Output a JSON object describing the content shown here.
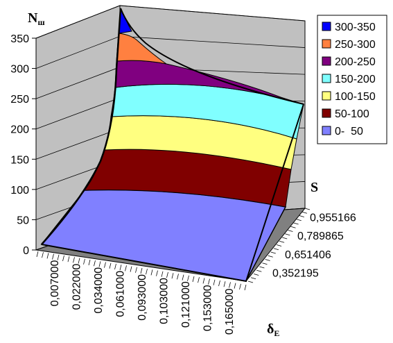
{
  "chart_data": {
    "type": "surface",
    "title": "",
    "zlabel": "N",
    "zlabel_sub": "ш",
    "xlabel": "δ",
    "xlabel_sub": "E",
    "ylabel": "S",
    "zlim": [
      0,
      350
    ],
    "z_ticks": [
      "0",
      "50",
      "100",
      "150",
      "200",
      "250",
      "300",
      "350"
    ],
    "x_categories": [
      "0,007000",
      "0,022000",
      "0,034000",
      "0,061000",
      "0,093000",
      "0,103000",
      "0,121000",
      "0,153000",
      "0,165000"
    ],
    "y_categories": [
      "0,352195",
      "0,651406",
      "0,789865",
      "0,955166"
    ],
    "grid": true,
    "legend_position": "right",
    "bands": [
      {
        "label": "300-350",
        "color": "#0000ff"
      },
      {
        "label": "250-300",
        "color": "#ff8040"
      },
      {
        "label": "200-250",
        "color": "#800080"
      },
      {
        "label": "150-200",
        "color": "#80ffff"
      },
      {
        "label": "100-150",
        "color": "#ffff80"
      },
      {
        "label": "50-100",
        "color": "#800000"
      },
      {
        "label": "0-  50",
        "color": "#8080ff"
      }
    ]
  }
}
